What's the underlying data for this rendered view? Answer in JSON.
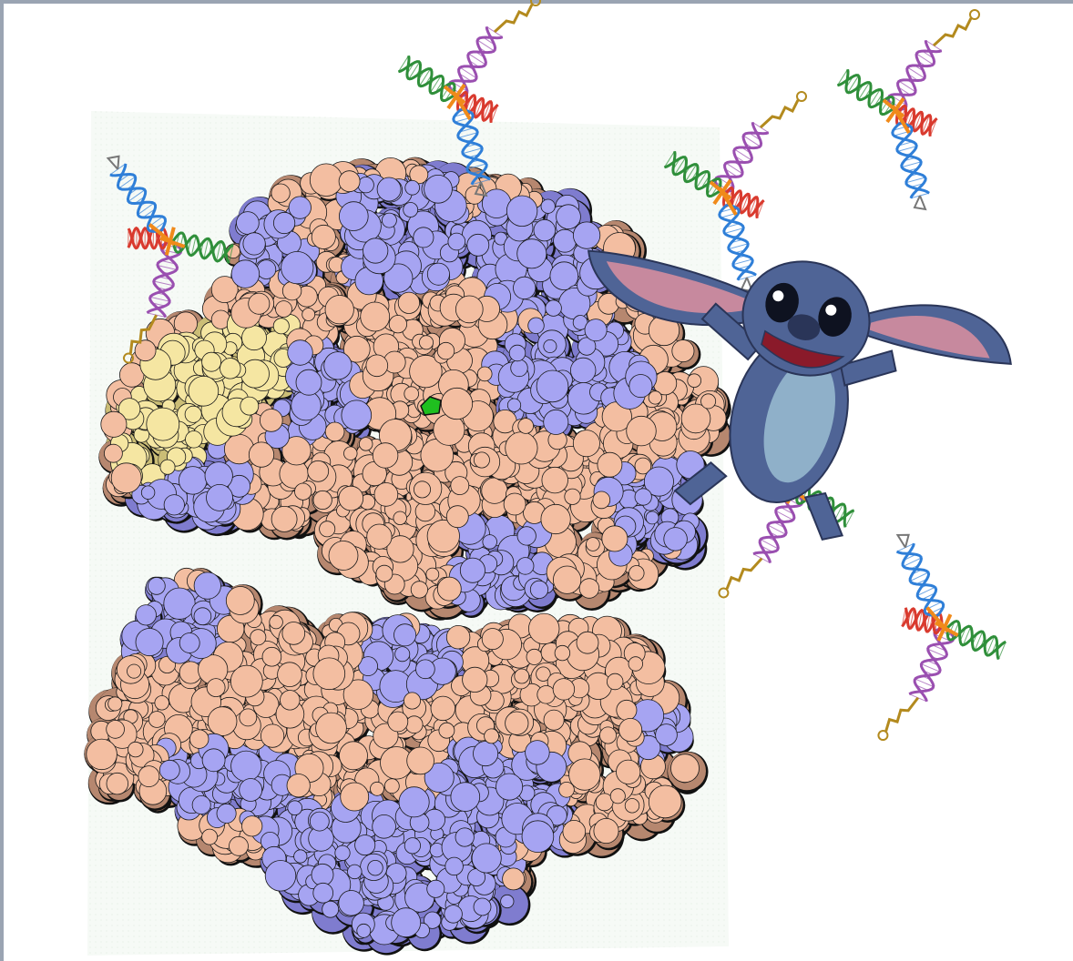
{
  "canvas": {
    "background": "#ffffff",
    "frame_color": "#9aa4b2"
  },
  "colors": {
    "protein": "#a6a4f2",
    "protein_shadow": "#7f7ccf",
    "rrna": "#f3bea1",
    "rrna_shadow": "#b6876f",
    "trna_in_site": "#f5e6a2",
    "trna_in_site_shadow": "#cbbd76",
    "active_site": "#1fbf1f",
    "outline": "#111111",
    "backdrop": "#f6faf6",
    "trna_acceptor_stem": "#9a4fb0",
    "trna_d_arm": "#d93a2e",
    "trna_t_arm": "#2f8f3a",
    "trna_anticodon_arm": "#2f7fd8",
    "trna_core": "#f08a1a",
    "trna_amino_acid": "#b38a1e",
    "character_body": "#4f6496",
    "character_belly": "#8fb0c9",
    "character_ear_inner": "#c7899e"
  },
  "icons": {
    "ribosome_large_subunit": "ribosome-large-subunit-illustration",
    "ribosome_small_subunit": "ribosome-small-subunit-illustration",
    "trna": "trna-molecule-icon",
    "character": "blue-alien-character-illustration"
  },
  "trna_count": 6
}
